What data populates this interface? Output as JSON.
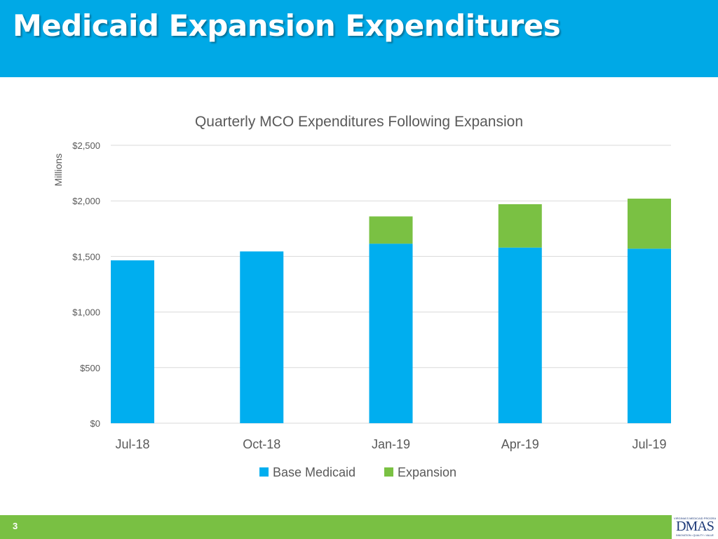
{
  "slide": {
    "title": "Medicaid Expansion Expenditures",
    "page_number": "3",
    "logo": {
      "top_text": "VIRGINIA'S MEDICAID PROGRAM",
      "main_text": "DMAS",
      "bottom_text": "INNOVATION • QUALITY • VALUE"
    }
  },
  "colors": {
    "header": "#00a9e6",
    "footer": "#79c043",
    "base_medicaid": "#00aeef",
    "expansion": "#7ac143",
    "gridline": "#d9d9d9",
    "axis_text": "#595959"
  },
  "chart_data": {
    "type": "bar",
    "stacked": true,
    "title": "Quarterly MCO Expenditures Following Expansion",
    "ylabel": "Millions",
    "xlabel": "",
    "categories": [
      "Jul-18",
      "Oct-18",
      "Jan-19",
      "Apr-19",
      "Jul-19"
    ],
    "series": [
      {
        "name": "Base Medicaid",
        "color": "#00aeef",
        "values": [
          1465,
          1545,
          1615,
          1580,
          1570
        ]
      },
      {
        "name": "Expansion",
        "color": "#7ac143",
        "values": [
          0,
          0,
          245,
          390,
          450
        ]
      }
    ],
    "ylim": [
      0,
      2500
    ],
    "yticks": [
      0,
      500,
      1000,
      1500,
      2000,
      2500
    ],
    "ytick_labels": [
      "$0",
      "$500",
      "$1,000",
      "$1,500",
      "$2,000",
      "$2,500"
    ],
    "grid": true,
    "legend_position": "bottom"
  }
}
